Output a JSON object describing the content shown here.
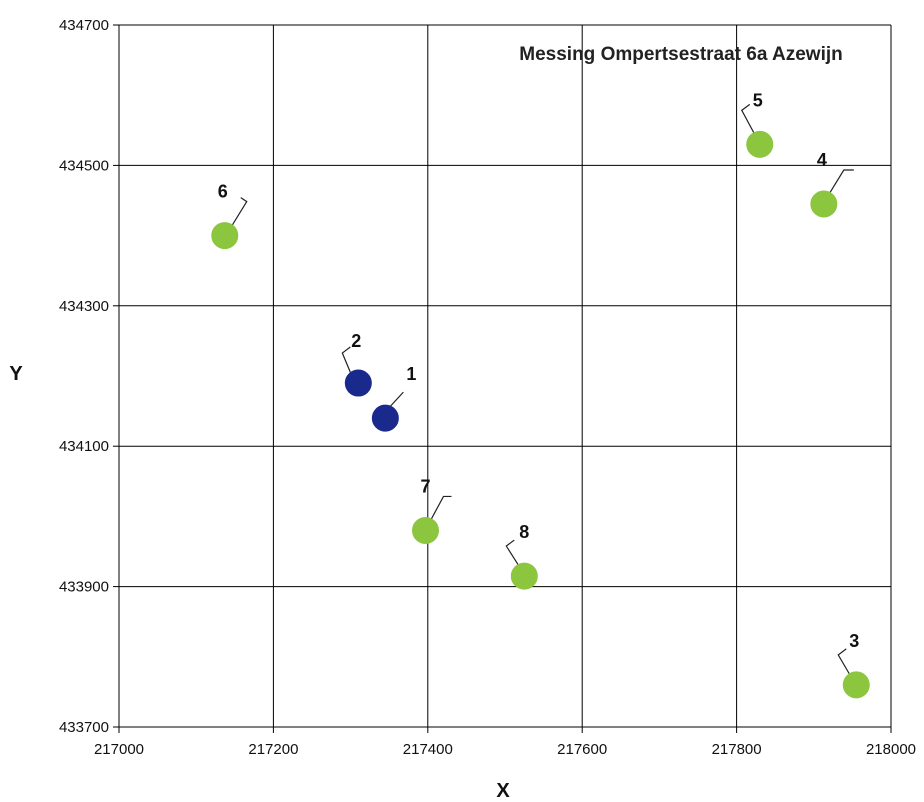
{
  "chart_data": {
    "type": "scatter",
    "title": "Messing Ompertsestraat 6a Azewijn",
    "xlabel": "X",
    "ylabel": "Y",
    "xlim": [
      217000,
      218000
    ],
    "ylim": [
      433700,
      434700
    ],
    "xticks": [
      217000,
      217200,
      217400,
      217600,
      217800,
      218000
    ],
    "yticks": [
      433700,
      433900,
      434100,
      434300,
      434500,
      434700
    ],
    "xtick_labels": [
      "217000",
      "217200",
      "217400",
      "217600",
      "217800",
      "218000"
    ],
    "ytick_labels": [
      "433700",
      "433900",
      "434100",
      "434300",
      "434500",
      "434700"
    ],
    "grid": true,
    "colors": {
      "blue": "#1a2a8c",
      "green": "#8cc63f"
    },
    "points": [
      {
        "label": "1",
        "x": 217345,
        "y": 434140,
        "color": "blue"
      },
      {
        "label": "2",
        "x": 217310,
        "y": 434190,
        "color": "blue"
      },
      {
        "label": "3",
        "x": 217955,
        "y": 433760,
        "color": "green"
      },
      {
        "label": "4",
        "x": 217913,
        "y": 434445,
        "color": "green"
      },
      {
        "label": "5",
        "x": 217830,
        "y": 434530,
        "color": "green"
      },
      {
        "label": "6",
        "x": 217137,
        "y": 434400,
        "color": "green"
      },
      {
        "label": "7",
        "x": 217397,
        "y": 433980,
        "color": "green"
      },
      {
        "label": "8",
        "x": 217525,
        "y": 433915,
        "color": "green"
      }
    ]
  }
}
